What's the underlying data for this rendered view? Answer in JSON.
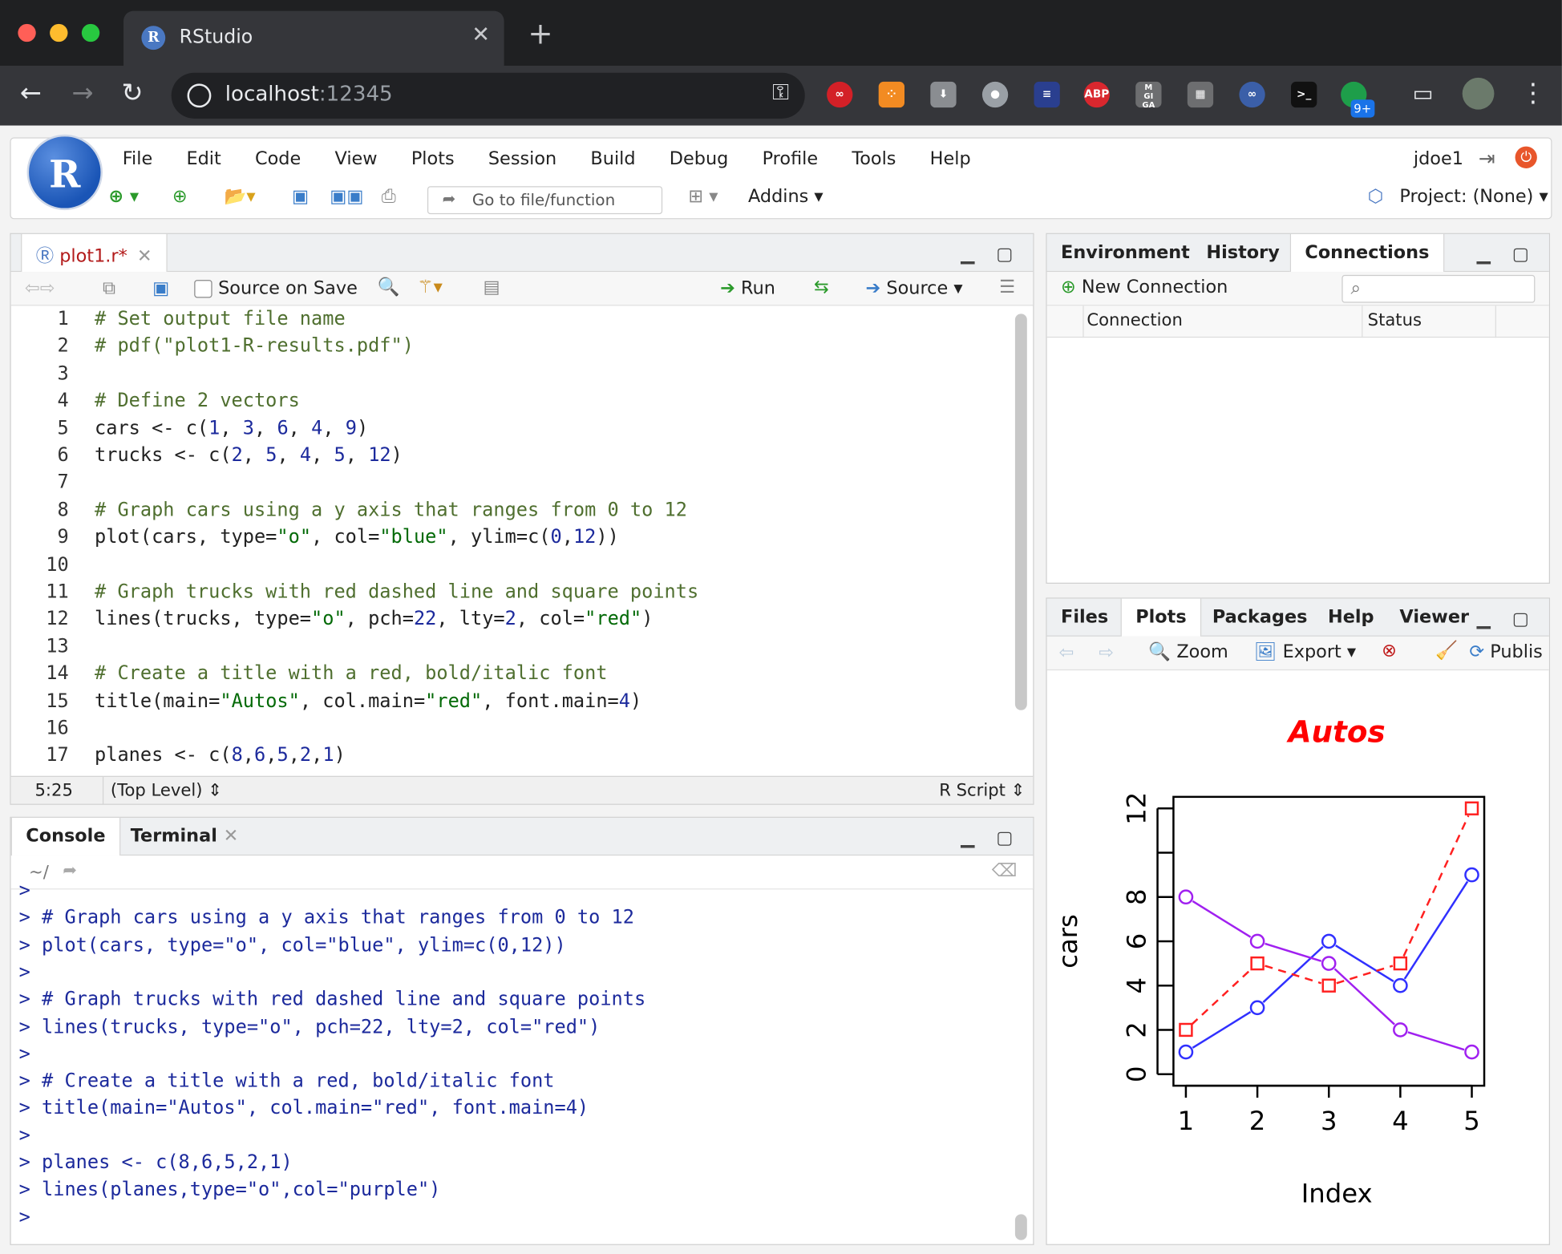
{
  "browser": {
    "tab_title": "RStudio",
    "url_host": "localhost",
    "url_port": ":12345",
    "extensions_badge": "9+",
    "abp_label": "ABP"
  },
  "menu": [
    "File",
    "Edit",
    "Code",
    "View",
    "Plots",
    "Session",
    "Build",
    "Debug",
    "Profile",
    "Tools",
    "Help"
  ],
  "user": "jdoe1",
  "toolbar": {
    "goto_placeholder": "Go to file/function",
    "addins": "Addins",
    "project": "Project: (None)"
  },
  "editor": {
    "tab": "plot1.r*",
    "source_on_save": "Source on Save",
    "run": "Run",
    "source": "Source",
    "lines": [
      {
        "n": "1",
        "t": "# Set output file name"
      },
      {
        "n": "2",
        "t": "# pdf(\"plot1-R-results.pdf\")"
      },
      {
        "n": "3",
        "t": ""
      },
      {
        "n": "4",
        "t": "# Define 2 vectors"
      },
      {
        "n": "5",
        "t": "cars <- c(1, 3, 6, 4, 9)"
      },
      {
        "n": "6",
        "t": "trucks <- c(2, 5, 4, 5, 12)"
      },
      {
        "n": "7",
        "t": ""
      },
      {
        "n": "8",
        "t": "# Graph cars using a y axis that ranges from 0 to 12"
      },
      {
        "n": "9",
        "t": "plot(cars, type=\"o\", col=\"blue\", ylim=c(0,12))"
      },
      {
        "n": "10",
        "t": ""
      },
      {
        "n": "11",
        "t": "# Graph trucks with red dashed line and square points"
      },
      {
        "n": "12",
        "t": "lines(trucks, type=\"o\", pch=22, lty=2, col=\"red\")"
      },
      {
        "n": "13",
        "t": ""
      },
      {
        "n": "14",
        "t": "# Create a title with a red, bold/italic font"
      },
      {
        "n": "15",
        "t": "title(main=\"Autos\", col.main=\"red\", font.main=4)"
      },
      {
        "n": "16",
        "t": ""
      },
      {
        "n": "17",
        "t": "planes <- c(8,6,5,2,1)"
      }
    ],
    "cursor_pos": "5:25",
    "scope": "(Top Level)",
    "filetype": "R Script"
  },
  "console": {
    "tabs": [
      "Console",
      "Terminal"
    ],
    "path": "~/",
    "lines": [
      ">",
      "> # Graph cars using a y axis that ranges from 0 to 12",
      "> plot(cars, type=\"o\", col=\"blue\", ylim=c(0,12))",
      ">",
      "> # Graph trucks with red dashed line and square points",
      "> lines(trucks, type=\"o\", pch=22, lty=2, col=\"red\")",
      ">",
      "> # Create a title with a red, bold/italic font",
      "> title(main=\"Autos\", col.main=\"red\", font.main=4)",
      ">",
      "> planes <- c(8,6,5,2,1)",
      "> lines(planes,type=\"o\",col=\"purple\")",
      ">"
    ]
  },
  "env_pane": {
    "tabs": [
      "Environment",
      "History",
      "Connections"
    ],
    "new_connection": "New Connection",
    "columns": [
      "Connection",
      "Status"
    ]
  },
  "plots_pane": {
    "tabs": [
      "Files",
      "Plots",
      "Packages",
      "Help",
      "Viewer"
    ],
    "zoom": "Zoom",
    "export": "Export",
    "publish": "Publis"
  },
  "chart_data": {
    "type": "line",
    "title": "Autos",
    "xlabel": "Index",
    "ylabel": "cars",
    "x": [
      1,
      2,
      3,
      4,
      5
    ],
    "xlim": [
      1,
      5
    ],
    "ylim": [
      0,
      12
    ],
    "yticks": [
      0,
      2,
      4,
      6,
      8,
      12
    ],
    "series": [
      {
        "name": "cars",
        "values": [
          1,
          3,
          6,
          4,
          9
        ],
        "color": "#3030ff",
        "marker": "circle",
        "dash": false
      },
      {
        "name": "trucks",
        "values": [
          2,
          5,
          4,
          5,
          12
        ],
        "color": "#ff2020",
        "marker": "square",
        "dash": true
      },
      {
        "name": "planes",
        "values": [
          8,
          6,
          5,
          2,
          1
        ],
        "color": "#a020f0",
        "marker": "circle",
        "dash": false
      }
    ],
    "title_color": "#ff0000"
  }
}
